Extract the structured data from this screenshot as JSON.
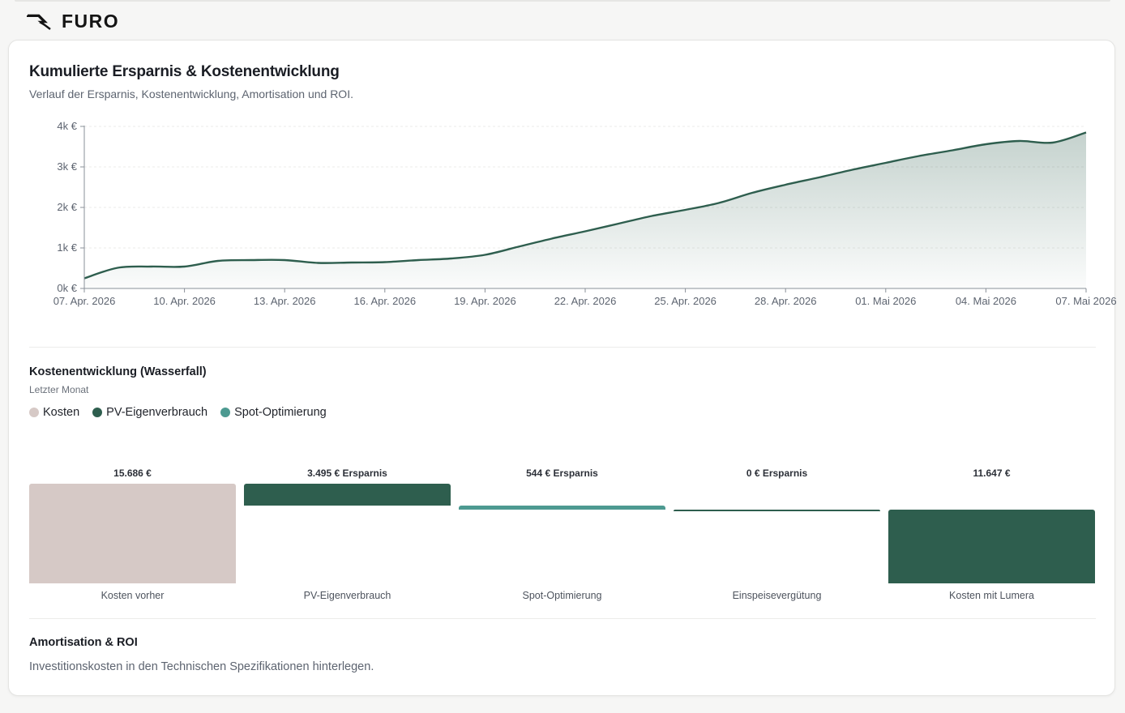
{
  "brand": {
    "name": "FURO",
    "icon": "bolt-logo-icon"
  },
  "card": {
    "title": "Kumulierte Ersparnis & Kostenentwicklung",
    "subtitle": "Verlauf der Ersparnis, Kostenentwicklung, Amortisation und ROI."
  },
  "chart_data": [
    {
      "type": "area",
      "title": "",
      "xlabel": "",
      "ylabel": "",
      "ylim": [
        0,
        4000
      ],
      "y_ticks": [
        "0k €",
        "1k €",
        "2k €",
        "3k €",
        "4k €"
      ],
      "x_ticks": [
        "07. Apr. 2026",
        "10. Apr. 2026",
        "13. Apr. 2026",
        "16. Apr. 2026",
        "19. Apr. 2026",
        "22. Apr. 2026",
        "25. Apr. 2026",
        "28. Apr. 2026",
        "01. Mai 2026",
        "04. Mai 2026",
        "07. Mai 2026"
      ],
      "grid": true,
      "color": "#2e5e4e",
      "x": [
        "2026-04-07",
        "2026-04-08",
        "2026-04-09",
        "2026-04-10",
        "2026-04-11",
        "2026-04-12",
        "2026-04-13",
        "2026-04-14",
        "2026-04-15",
        "2026-04-16",
        "2026-04-17",
        "2026-04-18",
        "2026-04-19",
        "2026-04-20",
        "2026-04-21",
        "2026-04-22",
        "2026-04-23",
        "2026-04-24",
        "2026-04-25",
        "2026-04-26",
        "2026-04-27",
        "2026-04-28",
        "2026-04-29",
        "2026-04-30",
        "2026-05-01",
        "2026-05-02",
        "2026-05-03",
        "2026-05-04",
        "2026-05-05",
        "2026-05-06",
        "2026-05-07"
      ],
      "values": [
        250,
        510,
        540,
        540,
        680,
        700,
        700,
        630,
        640,
        650,
        700,
        740,
        830,
        1030,
        1230,
        1410,
        1600,
        1790,
        1940,
        2110,
        2360,
        2560,
        2740,
        2930,
        3100,
        3270,
        3410,
        3560,
        3640,
        3600,
        3850
      ]
    },
    {
      "type": "bar",
      "title": "Kostenentwicklung (Wasserfall)",
      "subtitle": "Letzter Monat",
      "legend": [
        {
          "name": "Kosten",
          "color": "#d6c9c6"
        },
        {
          "name": "PV-Eigenverbrauch",
          "color": "#2e5e4e"
        },
        {
          "name": "Spot-Optimierung",
          "color": "#4d9a91"
        }
      ],
      "categories": [
        "Kosten vorher",
        "PV-Eigenverbrauch",
        "Spot-Optimierung",
        "Einspeisevergütung",
        "Kosten mit Lumera"
      ],
      "values": [
        15686,
        -3495,
        -544,
        0,
        11647
      ],
      "value_labels": [
        "15.686 €",
        "3.495 € Ersparnis",
        "544 € Ersparnis",
        "0 € Ersparnis",
        "11.647 €"
      ],
      "colors": [
        "#d6c9c6",
        "#2e5e4e",
        "#4d9a91",
        "#2e5e4e",
        "#2e5e4e"
      ]
    }
  ],
  "roi": {
    "title": "Amortisation & ROI",
    "text": "Investitionskosten in den Technischen Spezifikationen hinterlegen."
  }
}
